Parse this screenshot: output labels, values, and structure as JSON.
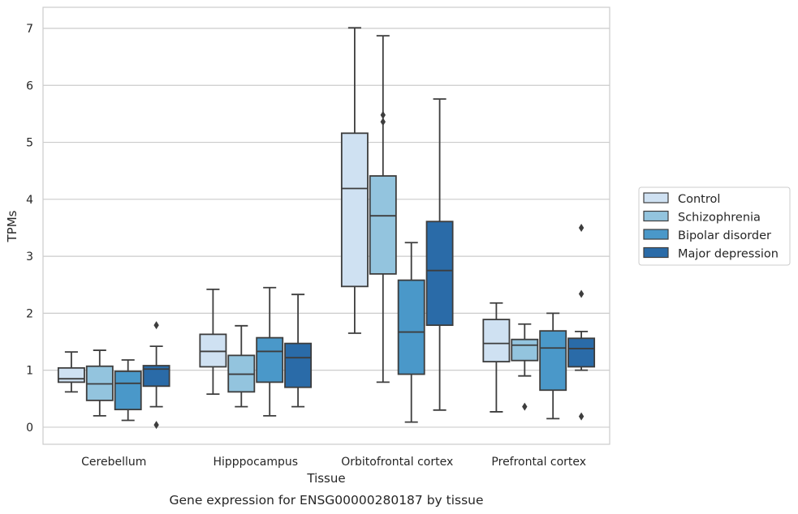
{
  "caption": "Gene expression for ENSG00000280187 by tissue",
  "chart_data": {
    "type": "box",
    "xlabel": "Tissue",
    "ylabel": "TPMs",
    "ylim": [
      -0.3,
      7.37
    ],
    "yticks": [
      0,
      1,
      2,
      3,
      4,
      5,
      6,
      7
    ],
    "grid": "horizontal",
    "legend_position": "right",
    "categories": [
      "Cerebellum",
      "Hipppocampus",
      "Orbitofrontal cortex",
      "Prefrontal cortex"
    ],
    "series": [
      {
        "name": "Control",
        "color": "#cfe1f2",
        "boxes": [
          {
            "whisker_low": 0.62,
            "q1": 0.79,
            "median": 0.85,
            "q3": 1.04,
            "whisker_high": 1.32,
            "outliers": []
          },
          {
            "whisker_low": 0.58,
            "q1": 1.06,
            "median": 1.33,
            "q3": 1.63,
            "whisker_high": 2.42,
            "outliers": []
          },
          {
            "whisker_low": 1.65,
            "q1": 2.47,
            "median": 4.19,
            "q3": 5.16,
            "whisker_high": 7.01,
            "outliers": []
          },
          {
            "whisker_low": 0.27,
            "q1": 1.15,
            "median": 1.47,
            "q3": 1.89,
            "whisker_high": 2.18,
            "outliers": []
          }
        ]
      },
      {
        "name": "Schizophrenia",
        "color": "#93c4de",
        "boxes": [
          {
            "whisker_low": 0.2,
            "q1": 0.47,
            "median": 0.76,
            "q3": 1.07,
            "whisker_high": 1.35,
            "outliers": []
          },
          {
            "whisker_low": 0.36,
            "q1": 0.62,
            "median": 0.93,
            "q3": 1.26,
            "whisker_high": 1.78,
            "outliers": []
          },
          {
            "whisker_low": 0.79,
            "q1": 2.69,
            "median": 3.71,
            "q3": 4.41,
            "whisker_high": 6.87,
            "outliers": [
              5.36,
              5.48
            ]
          },
          {
            "whisker_low": 0.9,
            "q1": 1.17,
            "median": 1.44,
            "q3": 1.54,
            "whisker_high": 1.81,
            "outliers": [
              0.36
            ]
          }
        ]
      },
      {
        "name": "Bipolar disorder",
        "color": "#4a98c9",
        "boxes": [
          {
            "whisker_low": 0.12,
            "q1": 0.31,
            "median": 0.77,
            "q3": 0.98,
            "whisker_high": 1.18,
            "outliers": []
          },
          {
            "whisker_low": 0.2,
            "q1": 0.79,
            "median": 1.33,
            "q3": 1.57,
            "whisker_high": 2.45,
            "outliers": []
          },
          {
            "whisker_low": 0.09,
            "q1": 0.93,
            "median": 1.67,
            "q3": 2.58,
            "whisker_high": 3.24,
            "outliers": []
          },
          {
            "whisker_low": 0.15,
            "q1": 0.65,
            "median": 1.39,
            "q3": 1.69,
            "whisker_high": 2.0,
            "outliers": []
          }
        ]
      },
      {
        "name": "Major depression",
        "color": "#2a6ba8",
        "boxes": [
          {
            "whisker_low": 0.36,
            "q1": 0.72,
            "median": 1.02,
            "q3": 1.08,
            "whisker_high": 1.42,
            "outliers": [
              0.04,
              1.79
            ]
          },
          {
            "whisker_low": 0.36,
            "q1": 0.7,
            "median": 1.22,
            "q3": 1.47,
            "whisker_high": 2.33,
            "outliers": []
          },
          {
            "whisker_low": 0.3,
            "q1": 1.79,
            "median": 2.75,
            "q3": 3.61,
            "whisker_high": 5.76,
            "outliers": []
          },
          {
            "whisker_low": 1.0,
            "q1": 1.06,
            "median": 1.38,
            "q3": 1.56,
            "whisker_high": 1.68,
            "outliers": [
              0.19,
              2.34,
              3.5
            ]
          }
        ]
      }
    ]
  }
}
